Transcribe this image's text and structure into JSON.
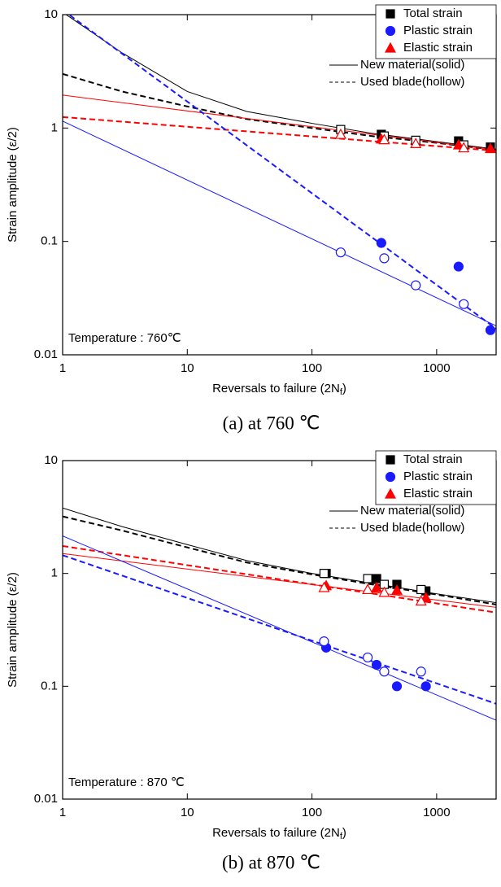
{
  "chart_data": [
    {
      "type": "scatter",
      "xscale": "log",
      "yscale": "log",
      "ylabel": "Strain amplitude (ε/2)",
      "xlabel": [
        "Reversals to failure (2N",
        "f",
        ")"
      ],
      "caption": "(a)  at  760  ℃",
      "annotation": "Temperature : 760℃",
      "xlim": [
        1,
        3000
      ],
      "ylim": [
        0.01,
        10
      ],
      "xticks": [
        1,
        10,
        100,
        1000
      ],
      "yticks": [
        0.01,
        0.1,
        1,
        10
      ],
      "legend": [
        {
          "label": "Total strain",
          "color": "#000000",
          "marker": "square"
        },
        {
          "label": "Plastic strain",
          "color": "#1a1aff",
          "marker": "circle"
        },
        {
          "label": "Elastic strain",
          "color": "#ff0000",
          "marker": "triangle"
        }
      ],
      "style_legend": [
        {
          "label": "New material(solid)",
          "dash": false
        },
        {
          "label": "Used blade(hollow)",
          "dash": true
        }
      ],
      "series": [
        {
          "color": "#000000",
          "marker": "square",
          "filled": true,
          "x": [
            360,
            1500,
            2700
          ],
          "values": [
            0.88,
            0.77,
            0.68
          ]
        },
        {
          "color": "#000000",
          "marker": "square",
          "filled": false,
          "x": [
            170,
            380,
            680,
            1650
          ],
          "values": [
            0.97,
            0.85,
            0.78,
            0.71
          ]
        },
        {
          "color": "#1a1aff",
          "marker": "circle",
          "filled": true,
          "x": [
            360,
            1500,
            2700
          ],
          "values": [
            0.097,
            0.06,
            0.0165
          ]
        },
        {
          "color": "#1a1aff",
          "marker": "circle",
          "filled": false,
          "x": [
            170,
            380,
            680,
            1650
          ],
          "values": [
            0.08,
            0.071,
            0.041,
            0.028
          ]
        },
        {
          "color": "#ff0000",
          "marker": "triangle",
          "filled": true,
          "x": [
            360,
            1500,
            2700
          ],
          "values": [
            0.8,
            0.71,
            0.66
          ]
        },
        {
          "color": "#ff0000",
          "marker": "triangle",
          "filled": false,
          "x": [
            170,
            380,
            680,
            1650
          ],
          "values": [
            0.88,
            0.79,
            0.73,
            0.67
          ]
        },
        {
          "color": "#000000",
          "dash": false,
          "x": [
            1,
            3,
            10,
            30,
            100,
            300,
            1000,
            3000
          ],
          "values": [
            10.5,
            4.6,
            2.1,
            1.4,
            1.1,
            0.9,
            0.76,
            0.65
          ]
        },
        {
          "color": "#000000",
          "dash": true,
          "x": [
            1,
            3,
            10,
            30,
            100,
            300,
            1000,
            3000
          ],
          "values": [
            3.0,
            2.1,
            1.55,
            1.2,
            1.0,
            0.85,
            0.74,
            0.64
          ]
        },
        {
          "color": "#ff0000",
          "dash": false,
          "x": [
            1,
            3000
          ],
          "values": [
            1.95,
            0.64
          ]
        },
        {
          "color": "#ff0000",
          "dash": true,
          "x": [
            1,
            3000
          ],
          "values": [
            1.25,
            0.63
          ]
        },
        {
          "color": "#1a1aff",
          "dash": false,
          "x": [
            1,
            3000
          ],
          "values": [
            1.15,
            0.018
          ]
        },
        {
          "color": "#1a1aff",
          "dash": true,
          "x": [
            1,
            3000
          ],
          "values": [
            11,
            0.017
          ]
        }
      ]
    },
    {
      "type": "scatter",
      "xscale": "log",
      "yscale": "log",
      "ylabel": "Strain amplitude (ε/2)",
      "xlabel": [
        "Reversals to failure (2N",
        "f",
        ")"
      ],
      "caption": "(b)  at  870  ℃",
      "annotation": "Temperature : 870 ℃",
      "xlim": [
        1,
        3000
      ],
      "ylim": [
        0.01,
        10
      ],
      "xticks": [
        1,
        10,
        100,
        1000
      ],
      "yticks": [
        0.01,
        0.1,
        1,
        10
      ],
      "legend": [
        {
          "label": "Total strain",
          "color": "#000000",
          "marker": "square"
        },
        {
          "label": "Plastic strain",
          "color": "#1a1aff",
          "marker": "circle"
        },
        {
          "label": "Elastic strain",
          "color": "#ff0000",
          "marker": "triangle"
        }
      ],
      "style_legend": [
        {
          "label": "New material(solid)",
          "dash": false
        },
        {
          "label": "Used blade(hollow)",
          "dash": true
        }
      ],
      "series": [
        {
          "color": "#000000",
          "marker": "square",
          "filled": true,
          "x": [
            130,
            330,
            480,
            820
          ],
          "values": [
            1.0,
            0.9,
            0.8,
            0.7
          ]
        },
        {
          "color": "#000000",
          "marker": "square",
          "filled": false,
          "x": [
            125,
            280,
            380,
            750
          ],
          "values": [
            1.0,
            0.9,
            0.8,
            0.72
          ]
        },
        {
          "color": "#1a1aff",
          "marker": "circle",
          "filled": true,
          "x": [
            130,
            330,
            480,
            820
          ],
          "values": [
            0.22,
            0.155,
            0.1,
            0.1
          ]
        },
        {
          "color": "#1a1aff",
          "marker": "circle",
          "filled": false,
          "x": [
            125,
            280,
            380,
            750
          ],
          "values": [
            0.25,
            0.18,
            0.135,
            0.135
          ]
        },
        {
          "color": "#ff0000",
          "marker": "triangle",
          "filled": true,
          "x": [
            130,
            330,
            480,
            820
          ],
          "values": [
            0.78,
            0.75,
            0.71,
            0.61
          ]
        },
        {
          "color": "#ff0000",
          "marker": "triangle",
          "filled": false,
          "x": [
            125,
            280,
            380,
            750
          ],
          "values": [
            0.75,
            0.72,
            0.68,
            0.57
          ]
        },
        {
          "color": "#000000",
          "dash": false,
          "x": [
            1,
            3,
            10,
            30,
            100,
            300,
            1000,
            3000
          ],
          "values": [
            3.8,
            2.6,
            1.8,
            1.3,
            1.0,
            0.82,
            0.66,
            0.55
          ]
        },
        {
          "color": "#000000",
          "dash": true,
          "x": [
            1,
            3,
            10,
            30,
            100,
            300,
            1000,
            3000
          ],
          "values": [
            3.2,
            2.4,
            1.7,
            1.25,
            0.98,
            0.8,
            0.65,
            0.53
          ]
        },
        {
          "color": "#ff0000",
          "dash": false,
          "x": [
            1,
            3000
          ],
          "values": [
            1.5,
            0.5
          ]
        },
        {
          "color": "#ff0000",
          "dash": true,
          "x": [
            1,
            3000
          ],
          "values": [
            1.75,
            0.45
          ]
        },
        {
          "color": "#1a1aff",
          "dash": false,
          "x": [
            1,
            3000
          ],
          "values": [
            2.15,
            0.05
          ]
        },
        {
          "color": "#1a1aff",
          "dash": true,
          "x": [
            1,
            3000
          ],
          "values": [
            1.45,
            0.07
          ]
        }
      ]
    }
  ]
}
